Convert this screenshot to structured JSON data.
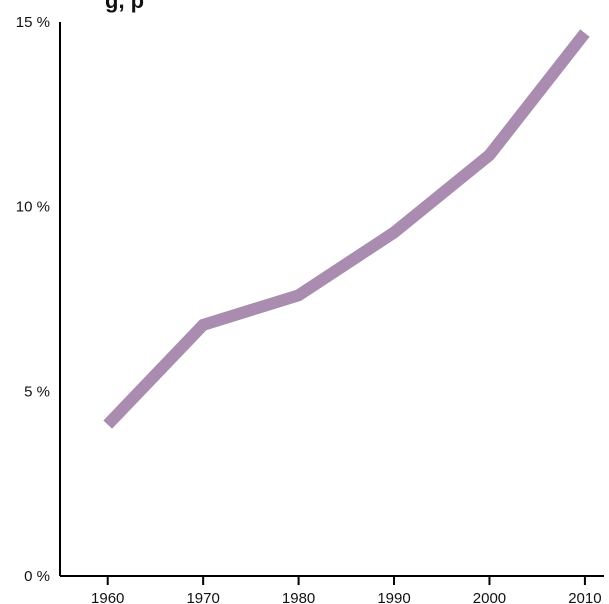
{
  "chart_data": {
    "type": "line",
    "title_fragment": "g, p",
    "x": [
      1960,
      1970,
      1980,
      1990,
      2000,
      2010
    ],
    "x_tick_labels": [
      "1960",
      "1970",
      "1980",
      "1990",
      "2000",
      "2010"
    ],
    "y_tick_labels": [
      "0 %",
      "5 %",
      "10 %",
      "15 %"
    ],
    "y_ticks": [
      0,
      5,
      10,
      15
    ],
    "xlim": [
      1955,
      2012
    ],
    "ylim": [
      0,
      15
    ],
    "series": [
      {
        "values": [
          4.1,
          6.8,
          7.6,
          9.3,
          11.4,
          14.7
        ],
        "color": "#a98cb0"
      }
    ],
    "grid": false,
    "xlabel": "",
    "ylabel": ""
  }
}
